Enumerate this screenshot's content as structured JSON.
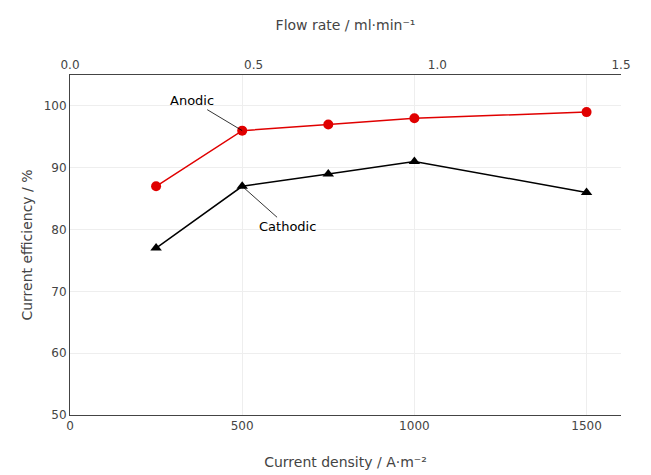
{
  "chart_data": {
    "type": "line",
    "x": [
      250,
      500,
      750,
      1000,
      1500
    ],
    "series": [
      {
        "name": "Anodic",
        "color": "#e00000",
        "marker": "circle",
        "values": [
          87,
          96,
          97,
          98,
          99
        ]
      },
      {
        "name": "Cathodic",
        "color": "#000000",
        "marker": "triangle-up",
        "values": [
          77,
          87,
          89,
          91,
          86
        ]
      }
    ],
    "xlabel": "Current density / A·m⁻²",
    "ylabel": "Current efficiency / %",
    "x2label": "Flow rate / ml·min⁻¹",
    "xlim": [
      0,
      1600
    ],
    "xticks": [
      0,
      500,
      1000,
      1500
    ],
    "ylim": [
      50,
      105
    ],
    "yticks": [
      50,
      60,
      70,
      80,
      90,
      100
    ],
    "x2lim": [
      0.0,
      1.5
    ],
    "x2ticks": [
      {
        "value": 0,
        "label": "0.0"
      },
      0.5,
      {
        "value": 1,
        "label": "1.0"
      },
      1.5
    ]
  }
}
